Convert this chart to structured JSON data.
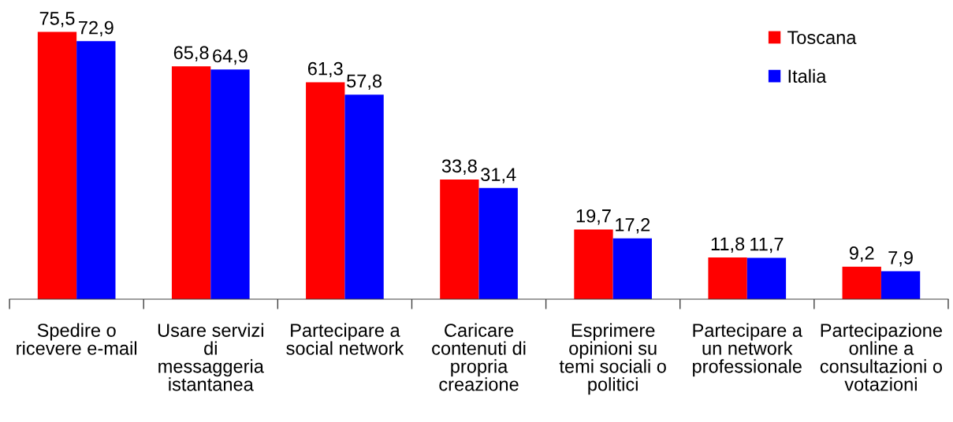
{
  "chart_data": {
    "type": "bar",
    "categories": [
      "Spedire o\nricevere e-mail",
      "Usare servizi\ndi\nmessaggeria\nistantanea",
      "Partecipare a\nsocial network",
      "Caricare\ncontenuti di\npropria\ncreazione",
      "Esprimere\nopinioni su\ntemi sociali o\npolitici",
      "Partecipare a\nun network\nprofessionale",
      "Partecipazione\nonline a\nconsultazioni o\nvotazioni"
    ],
    "series": [
      {
        "name": "Toscana",
        "color": "#ff0000",
        "values": [
          75.5,
          65.8,
          61.3,
          33.8,
          19.7,
          11.8,
          9.2
        ],
        "value_labels": [
          "75,5",
          "65,8",
          "61,3",
          "33,8",
          "19,7",
          "11,8",
          "9,2"
        ]
      },
      {
        "name": "Italia",
        "color": "#0000ff",
        "values": [
          72.9,
          64.9,
          57.8,
          31.4,
          17.2,
          11.7,
          7.9
        ],
        "value_labels": [
          "72,9",
          "64,9",
          "57,8",
          "31,4",
          "17,2",
          "11,7",
          "7,9"
        ]
      }
    ],
    "legend": "top right"
  }
}
